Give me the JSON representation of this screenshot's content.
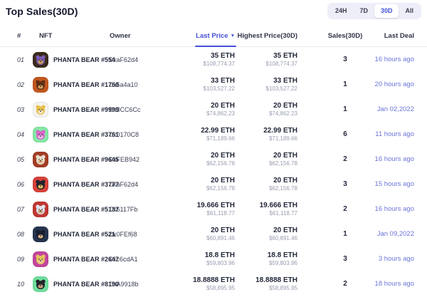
{
  "header": {
    "title": "Top Sales(30D)"
  },
  "filters": {
    "options": [
      {
        "label": "24H",
        "active": false
      },
      {
        "label": "7D",
        "active": false
      },
      {
        "label": "30D",
        "active": true
      },
      {
        "label": "All",
        "active": false
      }
    ]
  },
  "colors": {
    "accent": "#4350d6",
    "link": "#6b74d8",
    "filter_group_bg": "#edeef8",
    "usd_text": "#989cb0"
  },
  "table": {
    "columns": {
      "rank": "#",
      "nft": "NFT",
      "owner": "Owner",
      "last_price": "Last Price",
      "highest_price": "Highest Price(30D)",
      "sales": "Sales(30D)",
      "last_deal": "Last Deal"
    },
    "sort": {
      "column": "Last Price",
      "direction": "desc",
      "icon": "▼"
    },
    "rows": [
      {
        "rank": "01",
        "name": "PHANTA BEAR #554",
        "owner": "0xaF62d4",
        "last_price": {
          "eth": "35 ETH",
          "usd": "$108,774.37"
        },
        "highest_price": {
          "eth": "35 ETH",
          "usd": "$108,774.37"
        },
        "sales": "3",
        "last_deal": "16 hours ago",
        "avatar": {
          "bg": "#3a2a1c",
          "bear": "#7b5bb0",
          "face": "#caa14f"
        }
      },
      {
        "rank": "02",
        "name": "PHANTA BEAR #1760",
        "owner": "0x5a4a10",
        "last_price": {
          "eth": "33 ETH",
          "usd": "$103,527.22"
        },
        "highest_price": {
          "eth": "33 ETH",
          "usd": "$103,527.22"
        },
        "sales": "1",
        "last_deal": "20 hours ago",
        "avatar": {
          "bg": "#c2571f",
          "bear": "#5f2f16",
          "face": "#d9a05c"
        }
      },
      {
        "rank": "03",
        "name": "PHANTA BEAR #9999",
        "owner": "0x3CC6Cc",
        "last_price": {
          "eth": "20 ETH",
          "usd": "$74,862.23"
        },
        "highest_price": {
          "eth": "20 ETH",
          "usd": "$74,862.23"
        },
        "sales": "1",
        "last_deal": "Jan 02,2022",
        "avatar": {
          "bg": "#f4f3f0",
          "bear": "#e7c04b",
          "face": "#f7ead0"
        }
      },
      {
        "rank": "04",
        "name": "PHANTA BEAR #3761",
        "owner": "0x0170C8",
        "last_price": {
          "eth": "22.99 ETH",
          "usd": "$71,189.66"
        },
        "highest_price": {
          "eth": "22.99 ETH",
          "usd": "$71,189.66"
        },
        "sales": "6",
        "last_deal": "11 hours ago",
        "avatar": {
          "bg": "#84e8a6",
          "bear": "#d966c9",
          "face": "#f2bce6"
        }
      },
      {
        "rank": "05",
        "name": "PHANTA BEAR #9645",
        "owner": "0xFEB942",
        "last_price": {
          "eth": "20 ETH",
          "usd": "$62,156.78"
        },
        "highest_price": {
          "eth": "20 ETH",
          "usd": "$62,156.78"
        },
        "sales": "2",
        "last_deal": "16 hours ago",
        "avatar": {
          "bg": "#a33d25",
          "bear": "#e6dcc9",
          "face": "#e8b98a"
        }
      },
      {
        "rank": "06",
        "name": "PHANTA BEAR #3777",
        "owner": "0xaF62d4",
        "last_price": {
          "eth": "20 ETH",
          "usd": "$62,156.78"
        },
        "highest_price": {
          "eth": "20 ETH",
          "usd": "$62,156.78"
        },
        "sales": "3",
        "last_deal": "15 hours ago",
        "avatar": {
          "bg": "#d7423a",
          "bear": "#21212b",
          "face": "#e7c05a"
        }
      },
      {
        "rank": "07",
        "name": "PHANTA BEAR #5137",
        "owner": "0x6117Fb",
        "last_price": {
          "eth": "19.666 ETH",
          "usd": "$61,118.77"
        },
        "highest_price": {
          "eth": "19.666 ETH",
          "usd": "$61,118.77"
        },
        "sales": "2",
        "last_deal": "16 hours ago",
        "avatar": {
          "bg": "#c03732",
          "bear": "#dfe3ea",
          "face": "#caa37a"
        }
      },
      {
        "rank": "08",
        "name": "PHANTA BEAR #521",
        "owner": "0x0FEf68",
        "last_price": {
          "eth": "20 ETH",
          "usd": "$60,891.46"
        },
        "highest_price": {
          "eth": "20 ETH",
          "usd": "$60,891.46"
        },
        "sales": "1",
        "last_deal": "Jan 09,2022",
        "avatar": {
          "bg": "#25334f",
          "bear": "#161d2d",
          "face": "#d8b08a"
        }
      },
      {
        "rank": "09",
        "name": "PHANTA BEAR #2647",
        "owner": "0xc6cdA1",
        "last_price": {
          "eth": "18.8 ETH",
          "usd": "$59,803.96"
        },
        "highest_price": {
          "eth": "18.8 ETH",
          "usd": "$59,803.96"
        },
        "sales": "3",
        "last_deal": "3 hours ago",
        "avatar": {
          "bg": "#c2459c",
          "bear": "#e3c45f",
          "face": "#ecc79a"
        }
      },
      {
        "rank": "10",
        "name": "PHANTA BEAR #8190",
        "owner": "0xA9918b",
        "last_price": {
          "eth": "18.8888 ETH",
          "usd": "$58,895.95"
        },
        "highest_price": {
          "eth": "18.8888 ETH",
          "usd": "$58,895.95"
        },
        "sales": "2",
        "last_deal": "18 hours ago",
        "avatar": {
          "bg": "#6fdf9d",
          "bear": "#23242c",
          "face": "#caa37a"
        }
      }
    ]
  }
}
